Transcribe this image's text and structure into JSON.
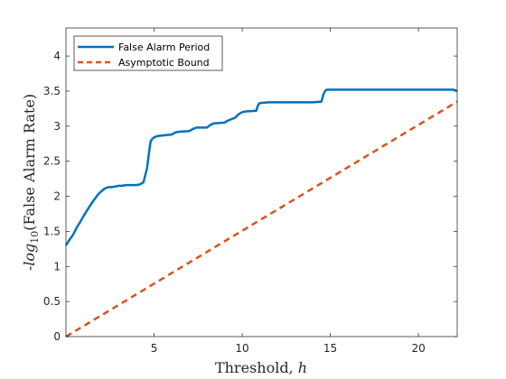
{
  "colors": {
    "series1": "#0072BD",
    "series2": "#D95319",
    "axis": "#262626",
    "background": "#ffffff"
  },
  "chart_data": {
    "type": "line",
    "title": "",
    "xlabel": "Threshold, ",
    "xlabel_var": "h",
    "ylabel_pre": "-log",
    "ylabel_sub": "10",
    "ylabel_post": "(False Alarm Rate)",
    "xlim": [
      0,
      22.2
    ],
    "ylim": [
      0,
      4.4
    ],
    "xticks": [
      5,
      10,
      15,
      20
    ],
    "yticks": [
      0,
      0.5,
      1,
      1.5,
      2,
      2.5,
      3,
      3.5,
      4
    ],
    "grid": false,
    "legend_position": "top-left",
    "series": [
      {
        "name": "False Alarm Period",
        "style": "solid",
        "x": [
          0.0,
          0.2,
          0.4,
          0.6,
          0.8,
          1.0,
          1.2,
          1.4,
          1.6,
          1.8,
          2.0,
          2.2,
          2.4,
          2.6,
          2.8,
          3.0,
          3.2,
          3.4,
          3.6,
          3.8,
          4.0,
          4.2,
          4.4,
          4.6,
          4.7,
          4.8,
          4.9,
          5.0,
          5.2,
          5.6,
          6.0,
          6.2,
          6.4,
          7.0,
          7.2,
          7.4,
          8.0,
          8.2,
          8.4,
          9.0,
          9.2,
          9.4,
          9.6,
          9.8,
          10.0,
          10.2,
          10.8,
          10.9,
          11.0,
          11.5,
          12.0,
          13.0,
          14.0,
          14.5,
          14.6,
          14.7,
          14.8,
          15.5,
          17.0,
          19.0,
          21.0,
          22.0,
          22.2
        ],
        "y": [
          1.3,
          1.38,
          1.45,
          1.55,
          1.63,
          1.72,
          1.8,
          1.88,
          1.95,
          2.02,
          2.07,
          2.11,
          2.13,
          2.13,
          2.14,
          2.15,
          2.15,
          2.16,
          2.16,
          2.16,
          2.16,
          2.17,
          2.2,
          2.4,
          2.6,
          2.78,
          2.82,
          2.84,
          2.86,
          2.87,
          2.88,
          2.91,
          2.92,
          2.93,
          2.96,
          2.98,
          2.98,
          3.02,
          3.04,
          3.05,
          3.08,
          3.1,
          3.12,
          3.17,
          3.2,
          3.21,
          3.22,
          3.3,
          3.33,
          3.34,
          3.34,
          3.34,
          3.34,
          3.35,
          3.45,
          3.5,
          3.52,
          3.52,
          3.52,
          3.52,
          3.52,
          3.52,
          3.5
        ]
      },
      {
        "name": "Asymptotic Bound",
        "style": "dashed",
        "x": [
          0,
          22.2
        ],
        "y": [
          0,
          3.35
        ]
      }
    ]
  }
}
